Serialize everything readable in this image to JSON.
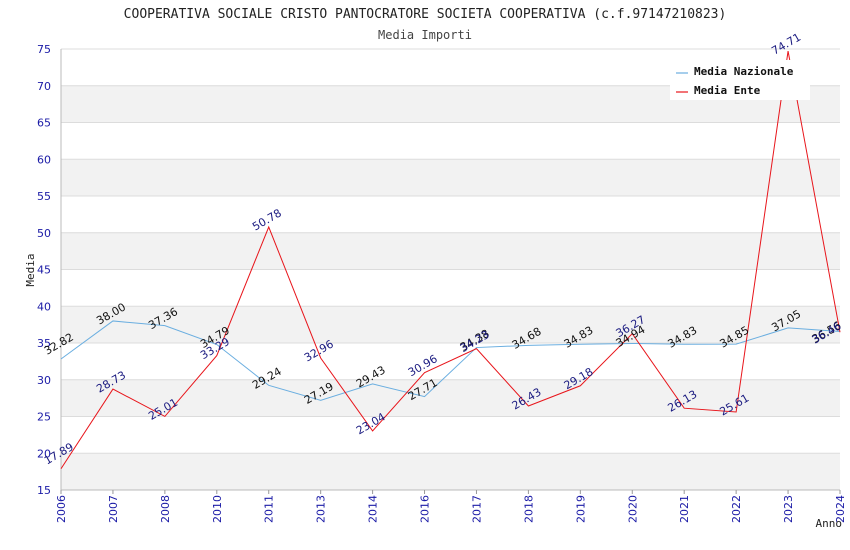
{
  "chart_data": {
    "type": "line",
    "title": "COOPERATIVA SOCIALE CRISTO PANTOCRATORE SOCIETA COOPERATIVA (c.f.97147210823)",
    "subtitle": "Media Importi",
    "xlabel": "Anno",
    "ylabel": "Media",
    "ylim": [
      15,
      75
    ],
    "yticks": [
      15,
      20,
      25,
      30,
      35,
      40,
      45,
      50,
      55,
      60,
      65,
      70,
      75
    ],
    "categories": [
      "2006",
      "2007",
      "2008",
      "2010",
      "2011",
      "2013",
      "2014",
      "2016",
      "2017",
      "2018",
      "2019",
      "2020",
      "2021",
      "2022",
      "2023",
      "2024"
    ],
    "series": [
      {
        "name": "Media Nazionale",
        "color": "#6aaee0",
        "values": [
          32.82,
          38.0,
          37.36,
          34.79,
          29.24,
          27.19,
          29.43,
          27.71,
          34.38,
          34.68,
          34.83,
          34.94,
          34.83,
          34.85,
          37.05,
          36.56
        ],
        "labels": [
          "32.82",
          "38.00",
          "37.36",
          "34.79",
          "29.24",
          "27.19",
          "29.43",
          "27.71",
          "34.38",
          "34.68",
          "34.83",
          "34.94",
          "34.83",
          "34.85",
          "37.05",
          "36.56"
        ]
      },
      {
        "name": "Media Ente",
        "color": "#e8151b",
        "values": [
          17.89,
          28.73,
          25.01,
          33.29,
          50.78,
          32.96,
          23.04,
          30.96,
          34.23,
          26.43,
          29.18,
          36.27,
          26.13,
          25.61,
          74.71,
          36.46
        ],
        "labels": [
          "17.89",
          "28.73",
          "25.01",
          "33.29",
          "50.78",
          "32.96",
          "23.04",
          "30.96",
          "34.23",
          "26.43",
          "29.18",
          "36.27",
          "26.13",
          "25.61",
          "74.71",
          "36.46"
        ]
      }
    ],
    "legend": "top-right",
    "grid": true
  }
}
